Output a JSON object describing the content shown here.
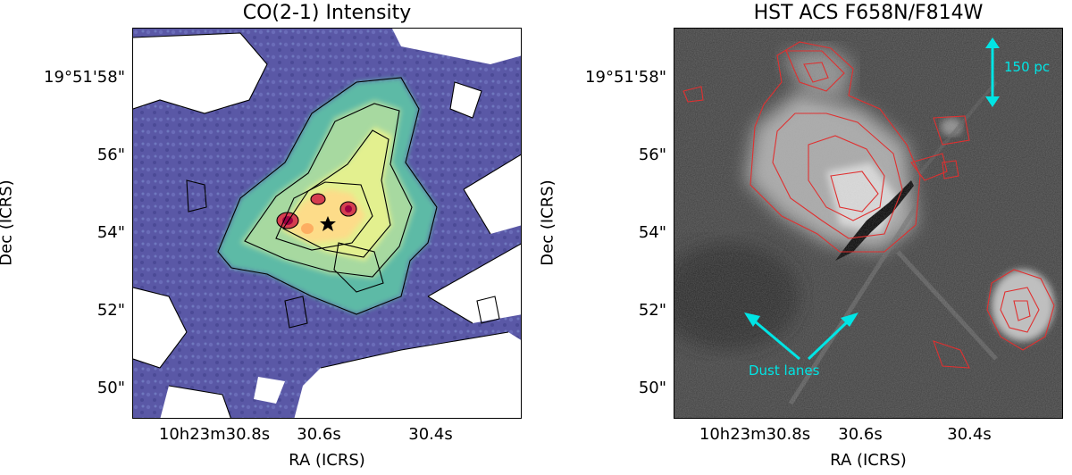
{
  "left_panel": {
    "title": "CO(2-1) Intensity",
    "xlabel": "RA (ICRS)",
    "ylabel": "Dec (ICRS)",
    "x_ticks": [
      "10h23m30.8s",
      "30.6s",
      "30.4s"
    ],
    "y_ticks": [
      "19°51'58\"",
      "56\"",
      "54\"",
      "52\"",
      "50\""
    ],
    "colormap": [
      "#5e4fa2",
      "#3288bd",
      "#66c2a5",
      "#abdda4",
      "#e6f598",
      "#fee08b",
      "#fdae61",
      "#d53e4f",
      "#9e0142"
    ],
    "marker_icon": "star-icon"
  },
  "right_panel": {
    "title": "HST ACS F658N/F814W",
    "xlabel": "RA (ICRS)",
    "ylabel": "Dec (ICRS)",
    "x_ticks": [
      "10h23m30.8s",
      "30.6s",
      "30.4s"
    ],
    "y_ticks": [
      "19°51'58\"",
      "56\"",
      "54\"",
      "52\"",
      "50\""
    ],
    "scale_label": "150 pc",
    "dust_label": "Dust lanes",
    "contour_color": "#e03030",
    "annotation_color": "#00e5e5"
  }
}
